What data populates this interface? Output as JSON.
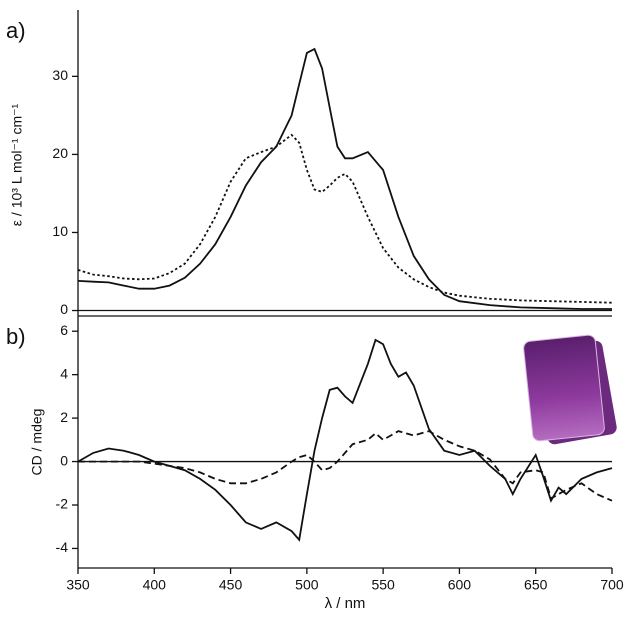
{
  "chart_data": [
    {
      "type": "line",
      "panel_label": "a)",
      "y_label": "ε / 10³ L mol⁻¹ cm⁻¹",
      "x": [
        350,
        360,
        370,
        380,
        390,
        400,
        410,
        420,
        430,
        440,
        450,
        460,
        470,
        480,
        490,
        495,
        500,
        505,
        510,
        515,
        520,
        525,
        530,
        540,
        550,
        560,
        570,
        580,
        590,
        600,
        620,
        640,
        660,
        680,
        700
      ],
      "series": [
        {
          "color": "#111111",
          "linestyle": "solid",
          "values": [
            3.8,
            3.7,
            3.6,
            3.2,
            2.8,
            2.8,
            3.2,
            4.2,
            6,
            8.5,
            12,
            16,
            19,
            21,
            25,
            29,
            33,
            33.5,
            31,
            26,
            21,
            19.5,
            19.5,
            20.3,
            18,
            12,
            7,
            4,
            2,
            1.2,
            0.7,
            0.4,
            0.3,
            0.2,
            0.2
          ]
        },
        {
          "color": "#111111",
          "linestyle": "dotted",
          "values": [
            5.2,
            4.6,
            4.4,
            4.1,
            4,
            4.1,
            4.8,
            6,
            8.5,
            12,
            16.5,
            19.5,
            20.3,
            21,
            22.5,
            21.5,
            18,
            15.5,
            15.2,
            16,
            17,
            17.5,
            16.5,
            12,
            8,
            5.5,
            4,
            3,
            2.3,
            1.9,
            1.5,
            1.3,
            1.2,
            1.1,
            1.0
          ]
        }
      ],
      "xlim": [
        350,
        700
      ],
      "ylim": [
        -0.7,
        38.5
      ],
      "yticks": [
        0,
        10,
        20,
        30
      ]
    },
    {
      "type": "line",
      "panel_label": "b)",
      "y_label": "CD / mdeg",
      "x_label": "λ / nm",
      "x": [
        350,
        360,
        370,
        380,
        390,
        400,
        410,
        420,
        430,
        440,
        450,
        460,
        470,
        480,
        490,
        495,
        500,
        505,
        510,
        515,
        520,
        525,
        530,
        540,
        545,
        550,
        555,
        560,
        565,
        570,
        580,
        590,
        600,
        610,
        620,
        630,
        635,
        640,
        650,
        655,
        660,
        665,
        670,
        680,
        690,
        700
      ],
      "series": [
        {
          "color": "#111111",
          "linestyle": "solid",
          "values": [
            0,
            0.4,
            0.6,
            0.5,
            0.3,
            0,
            -0.2,
            -0.4,
            -0.8,
            -1.3,
            -2,
            -2.8,
            -3.1,
            -2.8,
            -3.2,
            -3.6,
            -1.5,
            0.5,
            2,
            3.3,
            3.4,
            3,
            2.7,
            4.5,
            5.6,
            5.4,
            4.5,
            3.9,
            4.1,
            3.5,
            1.5,
            0.5,
            0.3,
            0.5,
            -0.2,
            -0.8,
            -1.5,
            -0.8,
            0.3,
            -0.7,
            -1.8,
            -1.2,
            -1.5,
            -0.8,
            -0.5,
            -0.3
          ]
        },
        {
          "color": "#111111",
          "linestyle": "dashed",
          "values": [
            0,
            0,
            0,
            0,
            0,
            -0.1,
            -0.2,
            -0.3,
            -0.5,
            -0.8,
            -1,
            -1,
            -0.8,
            -0.5,
            0,
            0.2,
            0.3,
            0,
            -0.4,
            -0.3,
            0,
            0.4,
            0.8,
            1,
            1.3,
            1,
            1.2,
            1.4,
            1.3,
            1.2,
            1.4,
            1,
            0.7,
            0.5,
            0.1,
            -0.8,
            -1,
            -0.5,
            -0.4,
            -0.5,
            -1.7,
            -1.5,
            -1.3,
            -1,
            -1.5,
            -1.8
          ]
        }
      ],
      "xlim": [
        350,
        700
      ],
      "ylim": [
        -4.9,
        6.7
      ],
      "yticks": [
        -4,
        -2,
        0,
        2,
        4,
        6
      ],
      "xticks": [
        350,
        400,
        450,
        500,
        550,
        600,
        650,
        700
      ]
    }
  ]
}
